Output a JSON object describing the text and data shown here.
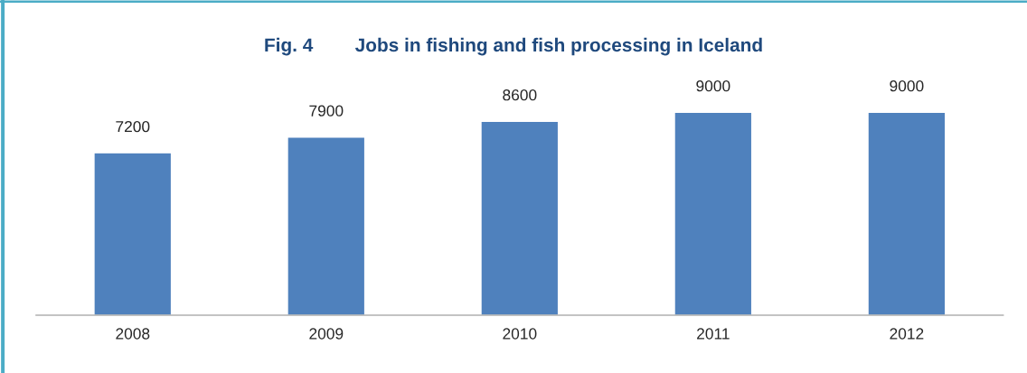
{
  "chart_data": {
    "type": "bar",
    "title": "Fig. 4        Jobs in fishing and fish processing in Iceland",
    "categories": [
      "2008",
      "2009",
      "2010",
      "2011",
      "2012"
    ],
    "values": [
      7200,
      7900,
      8600,
      9000,
      9000
    ],
    "color": "#4f81bd",
    "data_labels": true,
    "grid": false,
    "legend": false,
    "tick_labels": "x"
  }
}
